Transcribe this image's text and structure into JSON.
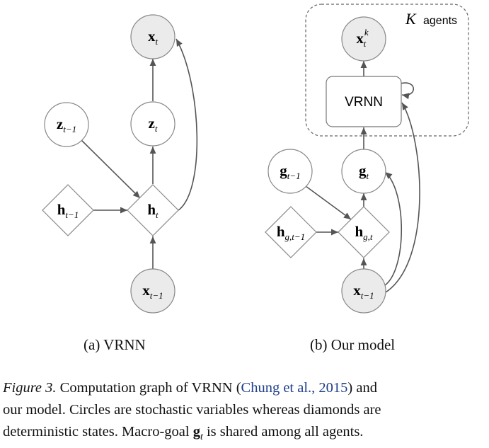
{
  "figure": {
    "subfig_a_caption": "(a) VRNN",
    "subfig_b_caption": "(b) Our model",
    "agents_label_var": "K",
    "agents_label_text": "agents",
    "vrnn_box_label": "VRNN",
    "colors": {
      "observed_fill": "#ebebeb",
      "edge": "#555555",
      "box_border": "#777777"
    }
  },
  "nodes_a": {
    "x_t": {
      "base": "x",
      "sub": "t"
    },
    "z_t": {
      "base": "z",
      "sub": "t"
    },
    "z_tm1": {
      "base": "z",
      "sub": "t−1"
    },
    "h_t": {
      "base": "h",
      "sub": "t"
    },
    "h_tm1": {
      "base": "h",
      "sub": "t−1"
    },
    "x_tm1": {
      "base": "x",
      "sub": "t−1"
    }
  },
  "nodes_b": {
    "x_tk": {
      "base": "x",
      "sub": "t",
      "sup": "k"
    },
    "g_t": {
      "base": "g",
      "sub": "t"
    },
    "g_tm1": {
      "base": "g",
      "sub": "t−1"
    },
    "hg_t": {
      "base": "h",
      "sub": "g,t"
    },
    "hg_tm1": {
      "base": "h",
      "sub": "g,t−1"
    },
    "x_tm1": {
      "base": "x",
      "sub": "t−1"
    }
  },
  "caption": {
    "label": "Figure 3.",
    "line1_pre": " Computation graph of VRNN (",
    "citation_authors": "Chung et al.",
    "citation_sep": ", ",
    "citation_year": "2015",
    "line1_post": ") and",
    "line2": "our model. Circles are stochastic variables whereas diamonds are",
    "line3_pre": "deterministic states. Macro-goal ",
    "macro_goal_symbol": "g",
    "macro_goal_sub": "t",
    "line3_post": " is shared among all agents."
  }
}
